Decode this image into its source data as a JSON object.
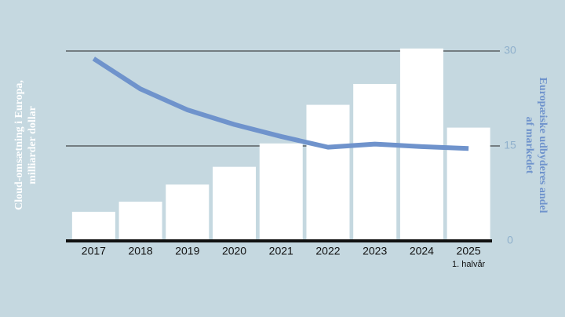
{
  "chart_data": {
    "type": "bar_line",
    "categories": [
      "2017",
      "2018",
      "2019",
      "2020",
      "2021",
      "2022",
      "2023",
      "2024",
      "2025"
    ],
    "annotation": "1. halvår",
    "y_label": [
      "Cloud-omsætning i Europa,",
      "milliarder dollar"
    ],
    "y2_label": [
      "Europæiske udbyderes andel",
      "af markedet"
    ],
    "series": [
      {
        "type": "bar",
        "color": "#ffffff",
        "values": [
          4.6,
          6.2,
          8.9,
          11.7,
          15.4,
          21.5,
          24.8,
          30.4,
          17.9
        ]
      },
      {
        "type": "line",
        "axis": "y2",
        "color": "#6f93cc",
        "values": [
          28.8,
          24.0,
          20.7,
          18.4,
          16.5,
          14.8,
          15.3,
          14.9,
          14.6
        ]
      }
    ],
    "ylim": [
      0,
      30.5
    ],
    "y2lim": [
      0,
      30.5
    ],
    "y2ticks": [
      0,
      15,
      30
    ],
    "grid": true
  }
}
